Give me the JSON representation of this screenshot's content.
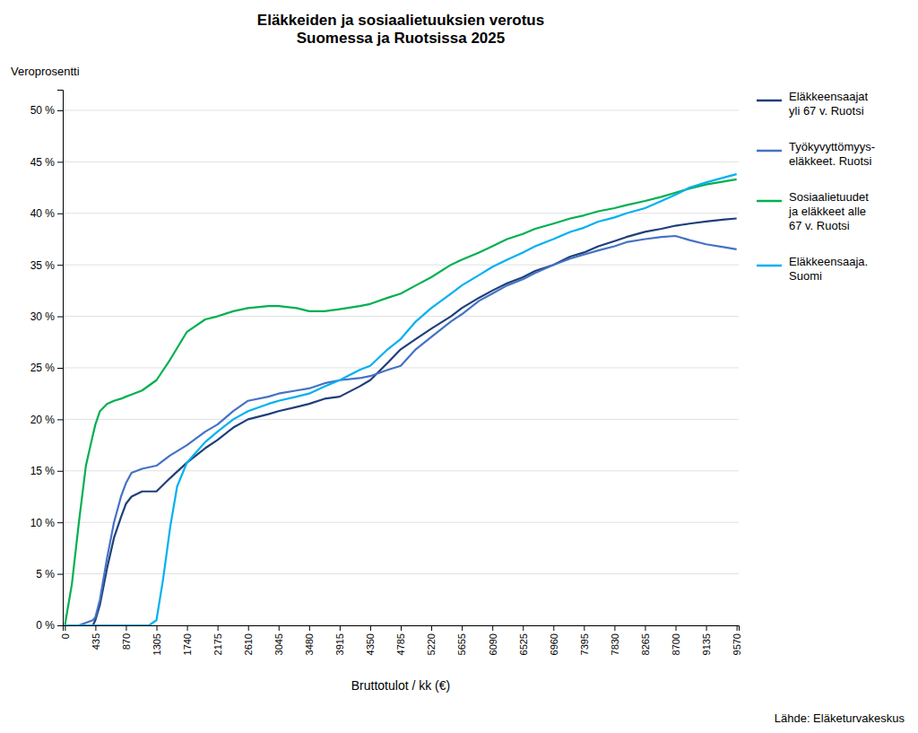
{
  "chart_data": {
    "type": "line",
    "title": "Eläkkeiden ja sosiaalietuuksien verotus\nSuomessa ja Ruotsissa 2025",
    "ylabel": "Veroprosentti",
    "xlabel": "Bruttotulot / kk (€)",
    "source": "Lähde: Eläketurvakeskus",
    "xlim": [
      -30,
      9600
    ],
    "xticks": [
      0,
      435,
      870,
      1305,
      1740,
      2175,
      2610,
      3045,
      3480,
      3915,
      4350,
      4785,
      5220,
      5655,
      6090,
      6525,
      6960,
      7395,
      7830,
      8265,
      8700,
      9135,
      9570
    ],
    "ylim": [
      0,
      0.52
    ],
    "yticks": [
      {
        "value": 0.0,
        "label": "0 %"
      },
      {
        "value": 0.05,
        "label": "5 %"
      },
      {
        "value": 0.1,
        "label": "10 %"
      },
      {
        "value": 0.15,
        "label": "15 %"
      },
      {
        "value": 0.2,
        "label": "20 %"
      },
      {
        "value": 0.25,
        "label": "25 %"
      },
      {
        "value": 0.3,
        "label": "30 %"
      },
      {
        "value": 0.35,
        "label": "35 %"
      },
      {
        "value": 0.4,
        "label": "40 %"
      },
      {
        "value": 0.45,
        "label": "45 %"
      },
      {
        "value": 0.5,
        "label": "50 %"
      }
    ],
    "grid": true,
    "legend": "right",
    "series": [
      {
        "name": "Eläkkeensaajat\nyli 67 v. Ruotsi",
        "color": "#1f3f7a",
        "x": [
          0,
          200,
          400,
          435,
          500,
          600,
          700,
          800,
          870,
          950,
          1100,
          1305,
          1500,
          1740,
          2000,
          2175,
          2400,
          2610,
          2900,
          3045,
          3300,
          3480,
          3700,
          3915,
          4200,
          4350,
          4600,
          4785,
          5000,
          5220,
          5500,
          5655,
          5900,
          6090,
          6300,
          6525,
          6700,
          6960,
          7200,
          7395,
          7600,
          7830,
          8000,
          8265,
          8500,
          8700,
          8900,
          9135,
          9400,
          9570
        ],
        "values": [
          0.0,
          0.0,
          0.0,
          0.005,
          0.02,
          0.055,
          0.085,
          0.105,
          0.118,
          0.125,
          0.13,
          0.13,
          0.143,
          0.158,
          0.172,
          0.18,
          0.192,
          0.2,
          0.205,
          0.208,
          0.212,
          0.215,
          0.22,
          0.222,
          0.232,
          0.238,
          0.255,
          0.268,
          0.278,
          0.288,
          0.3,
          0.308,
          0.318,
          0.325,
          0.332,
          0.338,
          0.344,
          0.35,
          0.358,
          0.362,
          0.368,
          0.373,
          0.377,
          0.382,
          0.385,
          0.388,
          0.39,
          0.392,
          0.394,
          0.395
        ]
      },
      {
        "name": "Työkyvyttömyys-\neläkkeet. Ruotsi",
        "color": "#4472c4",
        "x": [
          0,
          200,
          400,
          435,
          500,
          600,
          700,
          800,
          870,
          950,
          1100,
          1305,
          1500,
          1740,
          2000,
          2175,
          2400,
          2610,
          2900,
          3045,
          3300,
          3480,
          3700,
          3915,
          4200,
          4350,
          4600,
          4785,
          5000,
          5220,
          5500,
          5655,
          5900,
          6090,
          6300,
          6525,
          6700,
          6960,
          7200,
          7395,
          7600,
          7830,
          8000,
          8265,
          8500,
          8700,
          8900,
          9135,
          9400,
          9570
        ],
        "values": [
          0.0,
          0.0,
          0.005,
          0.008,
          0.025,
          0.065,
          0.1,
          0.125,
          0.138,
          0.148,
          0.152,
          0.155,
          0.165,
          0.175,
          0.188,
          0.195,
          0.208,
          0.218,
          0.222,
          0.225,
          0.228,
          0.23,
          0.235,
          0.238,
          0.24,
          0.242,
          0.248,
          0.252,
          0.268,
          0.28,
          0.295,
          0.302,
          0.315,
          0.322,
          0.33,
          0.336,
          0.342,
          0.35,
          0.356,
          0.36,
          0.364,
          0.368,
          0.372,
          0.375,
          0.377,
          0.378,
          0.374,
          0.37,
          0.367,
          0.365
        ]
      },
      {
        "name": "Sosiaalietuudet\nja eläkkeet alle\n67 v. Ruotsi",
        "color": "#00b050",
        "x": [
          0,
          100,
          200,
          300,
          400,
          435,
          500,
          600,
          700,
          800,
          870,
          950,
          1100,
          1305,
          1500,
          1740,
          2000,
          2175,
          2400,
          2610,
          2900,
          3045,
          3300,
          3480,
          3700,
          3915,
          4200,
          4350,
          4600,
          4785,
          5000,
          5220,
          5500,
          5655,
          5900,
          6090,
          6300,
          6525,
          6700,
          6960,
          7200,
          7395,
          7600,
          7830,
          8000,
          8265,
          8500,
          8700,
          8900,
          9135,
          9400,
          9570
        ],
        "values": [
          0.0,
          0.04,
          0.1,
          0.155,
          0.185,
          0.195,
          0.208,
          0.215,
          0.218,
          0.22,
          0.222,
          0.224,
          0.228,
          0.238,
          0.258,
          0.285,
          0.297,
          0.3,
          0.305,
          0.308,
          0.31,
          0.31,
          0.308,
          0.305,
          0.305,
          0.307,
          0.31,
          0.312,
          0.318,
          0.322,
          0.33,
          0.338,
          0.35,
          0.355,
          0.362,
          0.368,
          0.375,
          0.38,
          0.385,
          0.39,
          0.395,
          0.398,
          0.402,
          0.405,
          0.408,
          0.412,
          0.416,
          0.42,
          0.424,
          0.428,
          0.431,
          0.433
        ]
      },
      {
        "name": "Eläkkeensaaja.\nSuomi",
        "color": "#00b0f0",
        "x": [
          0,
          500,
          870,
          1000,
          1100,
          1200,
          1305,
          1400,
          1500,
          1600,
          1740,
          2000,
          2175,
          2400,
          2610,
          2900,
          3045,
          3300,
          3480,
          3700,
          3915,
          4200,
          4350,
          4600,
          4785,
          5000,
          5220,
          5500,
          5655,
          5900,
          6090,
          6300,
          6525,
          6700,
          6960,
          7200,
          7395,
          7600,
          7830,
          8000,
          8265,
          8500,
          8700,
          8900,
          9135,
          9400,
          9570
        ],
        "values": [
          0.0,
          0.0,
          0.0,
          0.0,
          0.0,
          0.0,
          0.005,
          0.045,
          0.095,
          0.135,
          0.158,
          0.178,
          0.188,
          0.2,
          0.208,
          0.215,
          0.218,
          0.222,
          0.225,
          0.232,
          0.238,
          0.248,
          0.252,
          0.268,
          0.278,
          0.295,
          0.308,
          0.322,
          0.33,
          0.34,
          0.348,
          0.355,
          0.362,
          0.368,
          0.375,
          0.382,
          0.386,
          0.392,
          0.396,
          0.4,
          0.405,
          0.412,
          0.418,
          0.425,
          0.43,
          0.435,
          0.438
        ]
      }
    ]
  }
}
